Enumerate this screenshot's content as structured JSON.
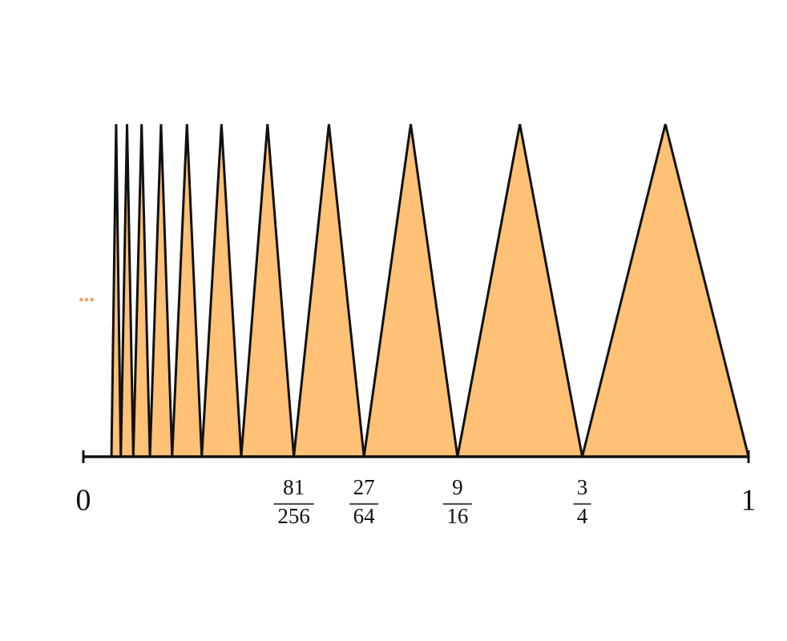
{
  "chart_data": {
    "type": "triangles",
    "breaks": [
      1,
      0.75,
      0.5625,
      0.421875,
      0.31640625,
      0.2373046875,
      0.177978515625,
      0.13348388671875,
      0.1001129150390625,
      0.07508468627929688,
      0.056313514709472656,
      0.04223513603210449
    ],
    "color": "#ffc175",
    "xlim": [
      0,
      1
    ],
    "xticks": [
      {
        "value": 0,
        "label": "0"
      },
      {
        "value": 0.31640625,
        "label": {
          "numerator": "81",
          "denominator": "256"
        }
      },
      {
        "value": 0.421875,
        "label": {
          "numerator": "27",
          "denominator": "64"
        }
      },
      {
        "value": 0.5625,
        "label": {
          "numerator": "9",
          "denominator": "16"
        }
      },
      {
        "value": 0.75,
        "label": {
          "numerator": "3",
          "denominator": "4"
        }
      },
      {
        "value": 1,
        "label": "1"
      }
    ],
    "annotation": "...",
    "annotation_color": "#f4a460"
  }
}
